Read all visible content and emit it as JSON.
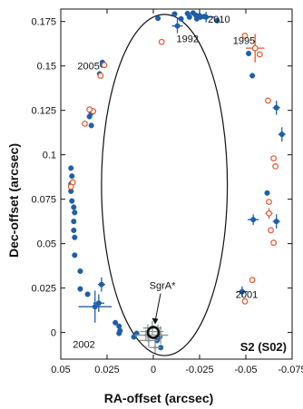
{
  "chart_data": {
    "type": "scatter",
    "panel_label": "S2 (S02)",
    "xlabel": "RA-offset (arcsec)",
    "ylabel": "Dec-offset (arcsec)",
    "xlim": [
      0.05,
      -0.075
    ],
    "ylim": [
      -0.015,
      0.182
    ],
    "x_ticks": [
      {
        "value": 0.05,
        "label": "0.05"
      },
      {
        "value": 0.025,
        "label": "0.025"
      },
      {
        "value": 0,
        "label": "0"
      },
      {
        "value": -0.025,
        "label": "-0.025"
      },
      {
        "value": -0.05,
        "label": "-0.05"
      },
      {
        "value": -0.075,
        "label": "-0.075"
      }
    ],
    "y_ticks": [
      {
        "value": 0,
        "label": "0"
      },
      {
        "value": 0.025,
        "label": "0.025"
      },
      {
        "value": 0.05,
        "label": "0.05"
      },
      {
        "value": 0.075,
        "label": "0.075"
      },
      {
        "value": 0.1,
        "label": "0.1"
      },
      {
        "value": 0.125,
        "label": "0.125"
      },
      {
        "value": 0.15,
        "label": "0.15"
      },
      {
        "value": 0.175,
        "label": "0.175"
      }
    ],
    "orbit": {
      "center": [
        -0.006,
        0.083
      ],
      "semi_axis_x": 0.034,
      "semi_axis_y": 0.096,
      "color": "#111111"
    },
    "sgrA": {
      "label": "SgrA*",
      "position": [
        0.0,
        0.0
      ],
      "color": "#111111"
    },
    "year_labels": [
      {
        "text": "1992",
        "x": -0.0185,
        "y": 0.1655
      },
      {
        "text": "2010",
        "x": -0.0355,
        "y": 0.1765
      },
      {
        "text": "1995",
        "x": -0.049,
        "y": 0.1645
      },
      {
        "text": "2005",
        "x": 0.035,
        "y": 0.15
      },
      {
        "text": "2001",
        "x": -0.0505,
        "y": 0.0215
      },
      {
        "text": "2002",
        "x": 0.0375,
        "y": -0.0065
      }
    ],
    "series": [
      {
        "marker": "filled-circle",
        "color": "#1f5fa8",
        "points": [
          {
            "x": -0.0115,
            "y": 0.1792,
            "ex": 0.0015,
            "ey": 0.0015
          },
          {
            "x": -0.0185,
            "y": 0.1795,
            "ex": 0.0015,
            "ey": 0.0015
          },
          {
            "x": -0.0215,
            "y": 0.1798
          },
          {
            "x": -0.0285,
            "y": 0.1775,
            "ex": 0.005,
            "ey": 0.003
          },
          {
            "x": -0.0025,
            "y": 0.1768
          },
          {
            "x": -0.023,
            "y": 0.1785
          },
          {
            "x": -0.025,
            "y": 0.1782
          },
          {
            "x": -0.0255,
            "y": 0.1775
          },
          {
            "x": -0.0275,
            "y": 0.1778
          },
          {
            "x": -0.0235,
            "y": 0.1765
          },
          {
            "x": -0.0195,
            "y": 0.1775
          },
          {
            "x": -0.015,
            "y": 0.1765
          },
          {
            "x": -0.013,
            "y": 0.1725,
            "ex": 0.003,
            "ey": 0.004
          },
          {
            "x": -0.0345,
            "y": 0.1755,
            "ex": 0.0015,
            "ey": 0.0015
          },
          {
            "x": -0.0515,
            "y": 0.157
          },
          {
            "x": -0.0535,
            "y": 0.1445
          },
          {
            "x": -0.0665,
            "y": 0.1265,
            "ex": 0.002,
            "ey": 0.004
          },
          {
            "x": -0.0695,
            "y": 0.1115,
            "ex": 0.002,
            "ey": 0.004
          },
          {
            "x": -0.0615,
            "y": 0.0785
          },
          {
            "x": -0.054,
            "y": 0.0635,
            "ex": 0.003,
            "ey": 0.003
          },
          {
            "x": -0.0665,
            "y": 0.0625,
            "ex": 0.002,
            "ey": 0.004
          },
          {
            "x": -0.048,
            "y": 0.023,
            "ex": 0.003,
            "ey": 0.003
          },
          {
            "x": 0.0275,
            "y": 0.152
          },
          {
            "x": 0.0275,
            "y": 0.1505
          },
          {
            "x": 0.029,
            "y": 0.1455
          },
          {
            "x": 0.0335,
            "y": 0.1235
          },
          {
            "x": 0.0345,
            "y": 0.1215
          },
          {
            "x": 0.0335,
            "y": 0.1165
          },
          {
            "x": 0.0445,
            "y": 0.0925
          },
          {
            "x": 0.044,
            "y": 0.088
          },
          {
            "x": 0.0445,
            "y": 0.0835
          },
          {
            "x": 0.0445,
            "y": 0.0795
          },
          {
            "x": 0.044,
            "y": 0.074
          },
          {
            "x": 0.043,
            "y": 0.0705
          },
          {
            "x": 0.0425,
            "y": 0.0675
          },
          {
            "x": 0.043,
            "y": 0.0625
          },
          {
            "x": 0.043,
            "y": 0.0575
          },
          {
            "x": 0.0425,
            "y": 0.0535
          },
          {
            "x": 0.0425,
            "y": 0.0435
          },
          {
            "x": 0.0395,
            "y": 0.0345
          },
          {
            "x": 0.0395,
            "y": 0.0245
          },
          {
            "x": 0.0355,
            "y": 0.0215
          },
          {
            "x": 0.028,
            "y": 0.027,
            "ex": 0.002,
            "ey": 0.004
          },
          {
            "x": 0.0295,
            "y": 0.0165,
            "ex": 0.003,
            "ey": 0.005
          },
          {
            "x": 0.0315,
            "y": 0.0145,
            "ex": 0.009,
            "ey": 0.009
          },
          {
            "x": 0.0205,
            "y": 0.0055
          },
          {
            "x": 0.0185,
            "y": 0.0035
          },
          {
            "x": 0.018,
            "y": 0.001
          },
          {
            "x": 0.0185,
            "y": -0.0005
          },
          {
            "x": 0.0105,
            "y": -0.0025
          },
          {
            "x": 0.009,
            "y": -0.0005
          },
          {
            "x": -0.002,
            "y": -0.0045
          },
          {
            "x": -0.0035,
            "y": -0.0025
          },
          {
            "x": -0.004,
            "y": -0.0085
          }
        ]
      },
      {
        "marker": "open-circle",
        "color": "#e8562e",
        "points": [
          {
            "x": -0.0045,
            "y": 0.1635
          },
          {
            "x": -0.0495,
            "y": 0.167
          },
          {
            "x": -0.055,
            "y": 0.16,
            "ex": 0.005,
            "ey": 0.008
          },
          {
            "x": -0.0575,
            "y": 0.1565
          },
          {
            "x": -0.062,
            "y": 0.1305
          },
          {
            "x": -0.065,
            "y": 0.098
          },
          {
            "x": -0.066,
            "y": 0.0935
          },
          {
            "x": -0.0625,
            "y": 0.0735
          },
          {
            "x": -0.0625,
            "y": 0.067,
            "ex": 0.002,
            "ey": 0.003
          },
          {
            "x": -0.065,
            "y": 0.0505
          },
          {
            "x": -0.0635,
            "y": 0.0575
          },
          {
            "x": -0.0535,
            "y": 0.0295
          },
          {
            "x": -0.0495,
            "y": 0.0175
          },
          {
            "x": 0.0265,
            "y": 0.1505
          },
          {
            "x": 0.0285,
            "y": 0.1445
          },
          {
            "x": 0.0325,
            "y": 0.1245
          },
          {
            "x": 0.0345,
            "y": 0.1255
          },
          {
            "x": 0.037,
            "y": 0.1175
          },
          {
            "x": 0.0435,
            "y": 0.0845
          },
          {
            "x": 0.0445,
            "y": 0.082
          }
        ]
      },
      {
        "marker": "plus",
        "color": "#8c9696",
        "points": [
          {
            "x": 0.0005,
            "y": 0.0025,
            "ex": 0.005,
            "ey": 0.004
          },
          {
            "x": 0.003,
            "y": 0.0005,
            "ex": 0.004,
            "ey": 0.004
          },
          {
            "x": -0.004,
            "y": -0.0015,
            "ex": 0.004,
            "ey": 0.005
          },
          {
            "x": -0.0025,
            "y": 0.0005,
            "ex": 0.003,
            "ey": 0.004
          },
          {
            "x": 0.0025,
            "y": -0.0045,
            "ex": 0.005,
            "ey": 0.004
          },
          {
            "x": 0.004,
            "y": -0.0015,
            "ex": 0.006,
            "ey": 0.003
          },
          {
            "x": -0.001,
            "y": -0.0085,
            "ex": 0.003,
            "ey": 0.003
          }
        ]
      }
    ]
  }
}
